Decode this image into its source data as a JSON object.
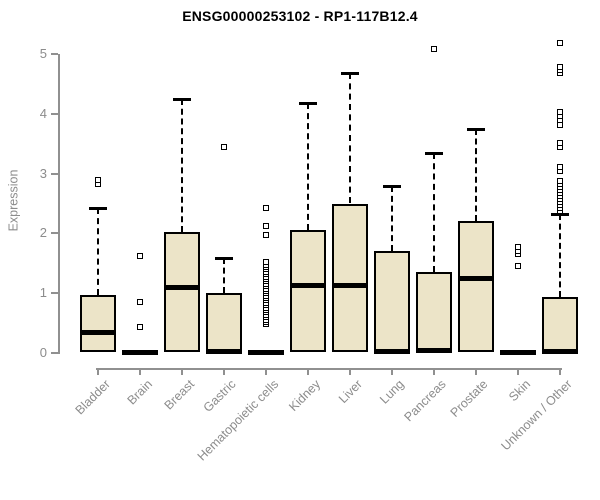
{
  "title": "ENSG00000253102 - RP1-117B12.4",
  "y_axis": {
    "label": "Expression",
    "tick_labels": [
      "0",
      "1",
      "2",
      "3",
      "4",
      "5"
    ]
  },
  "colors": {
    "box_fill": "#ECE4C8",
    "box_border": "#000000",
    "median": "#000000",
    "axis": "#909090",
    "tick_text": "#8c8c8c",
    "title_text": "#000000",
    "background": "#ffffff"
  },
  "chart_data": {
    "type": "boxplot",
    "title": "ENSG00000253102 - RP1-117B12.4",
    "xlabel": "",
    "ylabel": "Expression",
    "ylim": [
      0,
      5.3
    ],
    "yticks": [
      0,
      1,
      2,
      3,
      4,
      5
    ],
    "grid": false,
    "legend": false,
    "categories": [
      "Bladder",
      "Brain",
      "Breast",
      "Gastric",
      "Hematopoietic cells",
      "Kidney",
      "Liver",
      "Lung",
      "Pancreas",
      "Prostate",
      "Skin",
      "Unknown / Other"
    ],
    "boxes": [
      {
        "category": "Bladder",
        "whisker_low": 0.0,
        "q1": 0.02,
        "median": 0.35,
        "q3": 0.97,
        "whisker_high": 2.42,
        "outliers": [
          2.82,
          2.88
        ]
      },
      {
        "category": "Brain",
        "whisker_low": 0.0,
        "q1": 0.0,
        "median": 0.01,
        "q3": 0.03,
        "whisker_high": 0.04,
        "outliers": [
          0.42,
          0.84,
          1.62
        ]
      },
      {
        "category": "Breast",
        "whisker_low": 0.0,
        "q1": 0.02,
        "median": 1.09,
        "q3": 2.03,
        "whisker_high": 4.24,
        "outliers": []
      },
      {
        "category": "Gastric",
        "whisker_low": 0.0,
        "q1": 0.01,
        "median": 0.03,
        "q3": 1.01,
        "whisker_high": 1.59,
        "outliers": [
          3.43
        ]
      },
      {
        "category": "Hematopoietic cells",
        "whisker_low": 0.0,
        "q1": 0.0,
        "median": 0.01,
        "q3": 0.04,
        "whisker_high": 0.06,
        "outliers": [
          0.47,
          0.51,
          0.55,
          0.59,
          0.63,
          0.67,
          0.71,
          0.75,
          0.79,
          0.83,
          0.87,
          0.91,
          0.95,
          0.99,
          1.03,
          1.07,
          1.11,
          1.15,
          1.19,
          1.23,
          1.27,
          1.31,
          1.35,
          1.39,
          1.43,
          1.47,
          1.51,
          1.96,
          2.11,
          2.41
        ]
      },
      {
        "category": "Kidney",
        "whisker_low": 0.0,
        "q1": 0.02,
        "median": 1.13,
        "q3": 2.05,
        "whisker_high": 4.18,
        "outliers": []
      },
      {
        "category": "Liver",
        "whisker_low": 0.0,
        "q1": 0.02,
        "median": 1.13,
        "q3": 2.5,
        "whisker_high": 4.68,
        "outliers": []
      },
      {
        "category": "Lung",
        "whisker_low": 0.0,
        "q1": 0.01,
        "median": 0.03,
        "q3": 1.71,
        "whisker_high": 2.79,
        "outliers": []
      },
      {
        "category": "Pancreas",
        "whisker_low": 0.0,
        "q1": 0.01,
        "median": 0.04,
        "q3": 1.35,
        "whisker_high": 3.34,
        "outliers": [
          5.08
        ]
      },
      {
        "category": "Prostate",
        "whisker_low": 0.0,
        "q1": 0.02,
        "median": 1.25,
        "q3": 2.21,
        "whisker_high": 3.75,
        "outliers": []
      },
      {
        "category": "Skin",
        "whisker_low": 0.0,
        "q1": 0.0,
        "median": 0.01,
        "q3": 0.03,
        "whisker_high": 0.04,
        "outliers": [
          1.44,
          1.64,
          1.7,
          1.76
        ]
      },
      {
        "category": "Unknown / Other",
        "whisker_low": 0.0,
        "q1": 0.01,
        "median": 0.03,
        "q3": 0.94,
        "whisker_high": 2.32,
        "outliers": [
          2.36,
          2.41,
          2.46,
          2.51,
          2.56,
          2.61,
          2.66,
          2.71,
          2.76,
          2.81,
          2.86,
          3.03,
          3.11,
          3.43,
          3.5,
          3.8,
          3.88,
          3.95,
          4.02,
          4.68,
          4.72,
          4.77,
          5.18
        ]
      }
    ]
  }
}
